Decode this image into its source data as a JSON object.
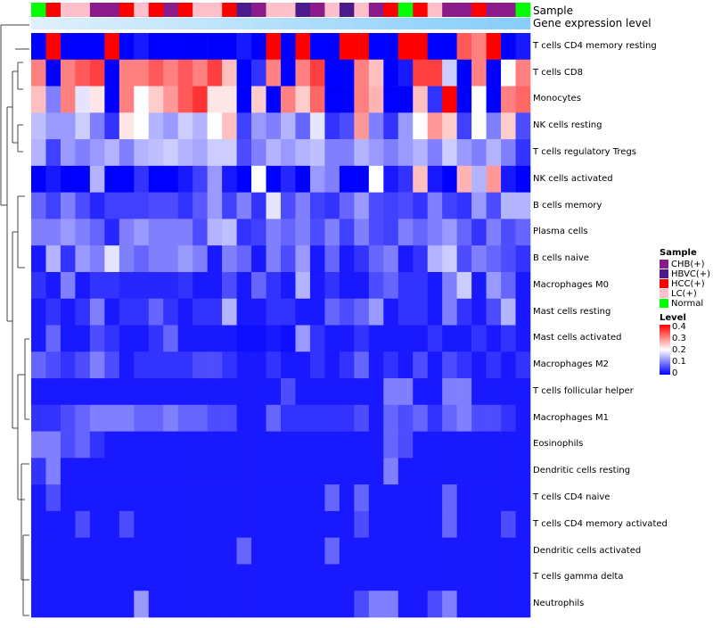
{
  "chart_data": {
    "type": "heatmap",
    "title": "",
    "annotation_tracks": [
      "Sample",
      "Gene expression level"
    ],
    "sample_groups": {
      "CHB": "CHB(+)",
      "HBVC": "HBVC(+)",
      "HCC": "HCC(+)",
      "LC": "LC(+)",
      "N": "Normal"
    },
    "sample_colors": {
      "CHB": "#8b1a8b",
      "HBVC": "#4b1a8b",
      "HCC": "#ff0000",
      "LC": "#ffc0cb",
      "N": "#00ff00"
    },
    "columns": [
      "N",
      "HCC",
      "LC",
      "LC",
      "CHB",
      "CHB",
      "HCC",
      "LC",
      "HCC",
      "CHB",
      "HCC",
      "LC",
      "LC",
      "HCC",
      "HBVC",
      "CHB",
      "LC",
      "LC",
      "HBVC",
      "CHB",
      "LC",
      "HBVC",
      "LC",
      "CHB",
      "HCC",
      "N",
      "HCC",
      "LC",
      "CHB",
      "CHB",
      "HCC",
      "CHB",
      "CHB",
      "N"
    ],
    "rows": [
      "T cells CD4 memory resting",
      "T cells CD8",
      "Monocytes",
      "NK cells resting",
      "T cells regulatory  Tregs",
      "NK cells activated",
      "B cells memory",
      "Plasma cells",
      "B cells naive",
      "Macrophages M0",
      "Mast cells resting",
      "Mast cells activated",
      "Macrophages M2",
      "T cells follicular helper",
      "Macrophages M1",
      "Eosinophils",
      "Dendritic cells resting",
      "T cells CD4 naive",
      "T cells CD4 memory activated",
      "Dendritic cells activated",
      "T cells gamma delta",
      "Neutrophils"
    ],
    "legend": {
      "sample_title": "Sample",
      "sample_entries": [
        "CHB(+)",
        "HBVC(+)",
        "HCC(+)",
        "LC(+)",
        "Normal"
      ],
      "level_title": "Level",
      "level_ticks": [
        "0.4",
        "0.3",
        "0.2",
        "0.1",
        "0"
      ],
      "level_range": [
        0,
        0.4
      ],
      "scale_colors": [
        "#0000ff",
        "#ffffff",
        "#ff0000"
      ]
    },
    "values": [
      [
        0,
        0.4,
        0,
        0,
        0,
        0.4,
        0,
        0.02,
        0,
        0,
        0,
        0,
        0,
        0,
        0.02,
        0,
        0.4,
        0,
        0.4,
        0,
        0,
        0.4,
        0.4,
        0,
        0,
        0.4,
        0.4,
        0,
        0,
        0.33,
        0.3,
        0.4,
        0,
        0.02
      ],
      [
        0.3,
        0,
        0.3,
        0.33,
        0.35,
        0,
        0.3,
        0.3,
        0.33,
        0.3,
        0.33,
        0.3,
        0.35,
        0.25,
        0,
        0.04,
        0.3,
        0,
        0.3,
        0.35,
        0,
        0,
        0.3,
        0.25,
        0,
        0.02,
        0.35,
        0.35,
        0.16,
        0,
        0.3,
        0,
        0.2,
        0.3
      ],
      [
        0.25,
        0.1,
        0.3,
        0.18,
        0.22,
        0,
        0.3,
        0.2,
        0.24,
        0.28,
        0.33,
        0.36,
        0.22,
        0.22,
        0,
        0.24,
        0,
        0.3,
        0.24,
        0.32,
        0,
        0,
        0.3,
        0.26,
        0,
        0,
        0.25,
        0.04,
        0.4,
        0,
        0.2,
        0,
        0.3,
        0.32
      ],
      [
        0.15,
        0.12,
        0.12,
        0.16,
        0.1,
        0.04,
        0.22,
        0.2,
        0.14,
        0.12,
        0.16,
        0.14,
        0.2,
        0.25,
        0.05,
        0.12,
        0.1,
        0.14,
        0.08,
        0.18,
        0.04,
        0.06,
        0.28,
        0.1,
        0.04,
        0.12,
        0.2,
        0.28,
        0.24,
        0.05,
        0.2,
        0.1,
        0.24,
        0.06
      ],
      [
        0.14,
        0.05,
        0.12,
        0.1,
        0.12,
        0.14,
        0.1,
        0.14,
        0.15,
        0.16,
        0.14,
        0.13,
        0.16,
        0.16,
        0.06,
        0.1,
        0.14,
        0.12,
        0.14,
        0.15,
        0.1,
        0.1,
        0.14,
        0.12,
        0.1,
        0.12,
        0.14,
        0.1,
        0.16,
        0.12,
        0.1,
        0.14,
        0.1,
        0.04
      ],
      [
        0,
        0.02,
        0,
        0,
        0.14,
        0,
        0,
        0.04,
        0,
        0,
        0.02,
        0.05,
        0.12,
        0.02,
        0,
        0.2,
        0,
        0.03,
        0,
        0.12,
        0.1,
        0,
        0,
        0.2,
        0.02,
        0.04,
        0.25,
        0.02,
        0,
        0.26,
        0.14,
        0.28,
        0.02,
        0
      ],
      [
        0.08,
        0.05,
        0.1,
        0.06,
        0.03,
        0.05,
        0.05,
        0.05,
        0.06,
        0.06,
        0.04,
        0.07,
        0.12,
        0.05,
        0.1,
        0.04,
        0.18,
        0.06,
        0.1,
        0.05,
        0.04,
        0.08,
        0.12,
        0.06,
        0.05,
        0.06,
        0.04,
        0.1,
        0.05,
        0.04,
        0.12,
        0.06,
        0.14,
        0.14
      ],
      [
        0.1,
        0.1,
        0.12,
        0.1,
        0.08,
        0.03,
        0.1,
        0.12,
        0.1,
        0.1,
        0.1,
        0.06,
        0.14,
        0.15,
        0.04,
        0.05,
        0.1,
        0.08,
        0.1,
        0.06,
        0.1,
        0.05,
        0.1,
        0.06,
        0.05,
        0.1,
        0.08,
        0.1,
        0.12,
        0.08,
        0.04,
        0.1,
        0.06,
        0.08
      ],
      [
        0.02,
        0.14,
        0.04,
        0.12,
        0.1,
        0.18,
        0.1,
        0.08,
        0.1,
        0.1,
        0.12,
        0.1,
        0.02,
        0.1,
        0.08,
        0.02,
        0.1,
        0.06,
        0.12,
        0.02,
        0.08,
        0.02,
        0.04,
        0.08,
        0.1,
        0.02,
        0.04,
        0.14,
        0.16,
        0.06,
        0.1,
        0.08,
        0.06,
        0.04
      ],
      [
        0.04,
        0.02,
        0.1,
        0.02,
        0.04,
        0.04,
        0.03,
        0.03,
        0.03,
        0.03,
        0.04,
        0.02,
        0.02,
        0.06,
        0.02,
        0.08,
        0.04,
        0.02,
        0.14,
        0.02,
        0.04,
        0.02,
        0.02,
        0.06,
        0.08,
        0.04,
        0.04,
        0.02,
        0.1,
        0.16,
        0.02,
        0.12,
        0.08,
        0.02
      ],
      [
        0.02,
        0.04,
        0.02,
        0.04,
        0.1,
        0.02,
        0.04,
        0.04,
        0.08,
        0.04,
        0.02,
        0.04,
        0.04,
        0.14,
        0.02,
        0.02,
        0.04,
        0.04,
        0.02,
        0.02,
        0.08,
        0.06,
        0.08,
        0.12,
        0.02,
        0.04,
        0.04,
        0.02,
        0.1,
        0.04,
        0.02,
        0.06,
        0.14,
        0.02
      ],
      [
        0.02,
        0.08,
        0.02,
        0.02,
        0.06,
        0.04,
        0.02,
        0.02,
        0.04,
        0.08,
        0.02,
        0.02,
        0.02,
        0.02,
        0.01,
        0.01,
        0.02,
        0.01,
        0.12,
        0.04,
        0.02,
        0.02,
        0.04,
        0.02,
        0.02,
        0.02,
        0.02,
        0.04,
        0.02,
        0.02,
        0.04,
        0.02,
        0.04,
        0.02
      ],
      [
        0.08,
        0.06,
        0.04,
        0.06,
        0.1,
        0.06,
        0.02,
        0.04,
        0.04,
        0.04,
        0.04,
        0.06,
        0.06,
        0.04,
        0.02,
        0.02,
        0.04,
        0.02,
        0.02,
        0.04,
        0.02,
        0.04,
        0.08,
        0.02,
        0.04,
        0.02,
        0.06,
        0.02,
        0.06,
        0.04,
        0.02,
        0.04,
        0.02,
        0.04
      ],
      [
        0.02,
        0.02,
        0.02,
        0.02,
        0.02,
        0.02,
        0.02,
        0.02,
        0.02,
        0.02,
        0.02,
        0.02,
        0.02,
        0.02,
        0.02,
        0.02,
        0.02,
        0.06,
        0.02,
        0.02,
        0.02,
        0.02,
        0.02,
        0.02,
        0.1,
        0.1,
        0.02,
        0.02,
        0.1,
        0.1,
        0.02,
        0.02,
        0.02,
        0.02
      ],
      [
        0.04,
        0.04,
        0.06,
        0.08,
        0.1,
        0.1,
        0.1,
        0.08,
        0.08,
        0.1,
        0.08,
        0.08,
        0.06,
        0.06,
        0.02,
        0.02,
        0.08,
        0.04,
        0.04,
        0.04,
        0.04,
        0.04,
        0.06,
        0.02,
        0.08,
        0.06,
        0.08,
        0.04,
        0.08,
        0.1,
        0.06,
        0.06,
        0.04,
        0.02
      ],
      [
        0.1,
        0.1,
        0.06,
        0.08,
        0.04,
        0.02,
        0.02,
        0.02,
        0.02,
        0.02,
        0.02,
        0.02,
        0.02,
        0.02,
        0.02,
        0.02,
        0.02,
        0.02,
        0.02,
        0.02,
        0.02,
        0.02,
        0.02,
        0.02,
        0.08,
        0.06,
        0.02,
        0.02,
        0.02,
        0.02,
        0.02,
        0.02,
        0.02,
        0.02
      ],
      [
        0.04,
        0.1,
        0.02,
        0.02,
        0.02,
        0.02,
        0.02,
        0.02,
        0.02,
        0.02,
        0.02,
        0.02,
        0.02,
        0.02,
        0.02,
        0.02,
        0.02,
        0.02,
        0.02,
        0.02,
        0.02,
        0.02,
        0.02,
        0.02,
        0.1,
        0.02,
        0.02,
        0.02,
        0.02,
        0.02,
        0.02,
        0.02,
        0.02,
        0.02
      ],
      [
        0.02,
        0.06,
        0.02,
        0.02,
        0.02,
        0.02,
        0.02,
        0.02,
        0.02,
        0.02,
        0.02,
        0.02,
        0.02,
        0.02,
        0.02,
        0.02,
        0.02,
        0.02,
        0.02,
        0.02,
        0.08,
        0.02,
        0.08,
        0.02,
        0.02,
        0.02,
        0.02,
        0.02,
        0.08,
        0.02,
        0.02,
        0.02,
        0.02,
        0.02
      ],
      [
        0.02,
        0.02,
        0.02,
        0.06,
        0.02,
        0.02,
        0.06,
        0.02,
        0.02,
        0.02,
        0.02,
        0.02,
        0.02,
        0.02,
        0.02,
        0.02,
        0.02,
        0.02,
        0.02,
        0.02,
        0.02,
        0.02,
        0.06,
        0.02,
        0.02,
        0.02,
        0.02,
        0.02,
        0.08,
        0.02,
        0.02,
        0.02,
        0.06,
        0.02
      ],
      [
        0.02,
        0.02,
        0.02,
        0.02,
        0.02,
        0.02,
        0.02,
        0.02,
        0.02,
        0.02,
        0.02,
        0.02,
        0.02,
        0.02,
        0.08,
        0.02,
        0.02,
        0.02,
        0.02,
        0.02,
        0.08,
        0.02,
        0.02,
        0.02,
        0.02,
        0.02,
        0.02,
        0.02,
        0.02,
        0.02,
        0.02,
        0.02,
        0.02,
        0.02
      ],
      [
        0.02,
        0.02,
        0.02,
        0.02,
        0.02,
        0.02,
        0.02,
        0.02,
        0.02,
        0.02,
        0.02,
        0.02,
        0.02,
        0.02,
        0.02,
        0.02,
        0.02,
        0.02,
        0.02,
        0.02,
        0.02,
        0.02,
        0.02,
        0.02,
        0.02,
        0.02,
        0.02,
        0.02,
        0.02,
        0.02,
        0.02,
        0.02,
        0.02,
        0.02
      ],
      [
        0.02,
        0.02,
        0.02,
        0.02,
        0.02,
        0.02,
        0.02,
        0.12,
        0.02,
        0.02,
        0.02,
        0.02,
        0.02,
        0.02,
        0.02,
        0.02,
        0.02,
        0.02,
        0.02,
        0.02,
        0.02,
        0.02,
        0.06,
        0.1,
        0.1,
        0.02,
        0.02,
        0.06,
        0.1,
        0.02,
        0.02,
        0.02,
        0.02,
        0.02
      ]
    ]
  }
}
